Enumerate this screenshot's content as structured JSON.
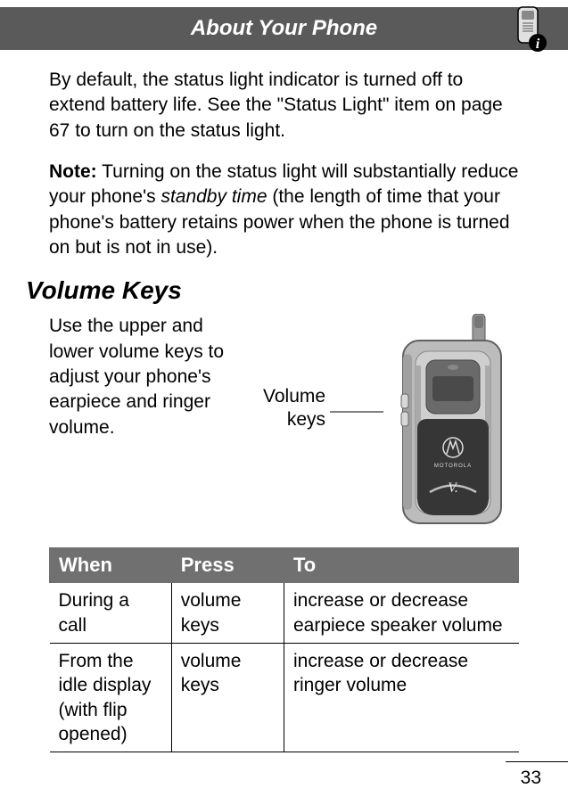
{
  "header": {
    "title": "About Your Phone"
  },
  "body": {
    "para1": "By default, the status light indicator is turned off to extend battery life. See the \"Status Light\" item on page 67 to turn on the status light.",
    "note_label": "Note:",
    "note_text_a": " Turning on the status light will substantially reduce your phone's ",
    "note_italic": "standby time",
    "note_text_b": " (the length of time that your phone's battery retains power when the phone is turned on but is not in use).",
    "section_heading": "Volume Keys",
    "volume_intro": "Use the upper and lower volume keys to adjust your phone's earpiece and ringer volume.",
    "callout_line1": "Volume",
    "callout_line2": "keys"
  },
  "table": {
    "headers": [
      "When",
      "Press",
      "To"
    ],
    "rows": [
      [
        "During a call",
        "volume keys",
        "increase or decrease earpiece speaker volume"
      ],
      [
        "From the idle display (with flip opened)",
        "volume keys",
        "increase or decrease ringer volume"
      ]
    ],
    "col_widths": [
      "26%",
      "24%",
      "50%"
    ]
  },
  "page_number": "33",
  "colors": {
    "header_bg": "#5a5a5a",
    "table_header_bg": "#707070",
    "phone_body": "#b0b0b0",
    "phone_dark": "#3a3a3a",
    "phone_screen": "#6a6a6a"
  }
}
